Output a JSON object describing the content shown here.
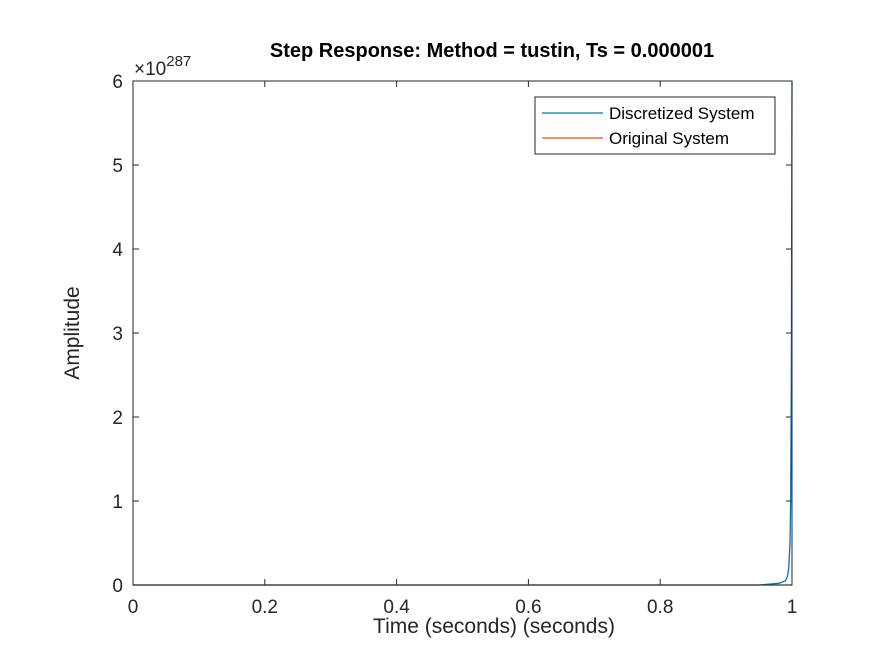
{
  "chart_data": {
    "type": "line",
    "title": "Step Response: Method = tustin, Ts = 0.000001",
    "xlabel": "Time (seconds) (seconds)",
    "ylabel": "Amplitude",
    "exponent_base": "×10",
    "exponent_power": "287",
    "xlim": [
      0,
      1
    ],
    "ylim": [
      0,
      6
    ],
    "x_ticks": [
      0,
      0.2,
      0.4,
      0.6,
      0.8,
      1
    ],
    "x_tick_labels": [
      "0",
      "0.2",
      "0.4",
      "0.6",
      "0.8",
      "1"
    ],
    "y_ticks": [
      0,
      1,
      2,
      3,
      4,
      5,
      6
    ],
    "y_tick_labels": [
      "0",
      "1",
      "2",
      "3",
      "4",
      "5",
      "6"
    ],
    "grid": false,
    "legend_position": "top-right",
    "series": [
      {
        "name": "Discretized System",
        "color": "#0072BD",
        "x": [
          0,
          0.95,
          0.98,
          0.99,
          0.993,
          0.995,
          0.997,
          0.998,
          0.999,
          1.0
        ],
        "y": [
          0,
          0,
          0.02,
          0.05,
          0.1,
          0.2,
          0.5,
          1.0,
          2.5,
          6
        ]
      },
      {
        "name": "Original System",
        "color": "#D95319",
        "x": [
          0,
          1
        ],
        "y": [
          0.0,
          0.0
        ]
      }
    ]
  }
}
